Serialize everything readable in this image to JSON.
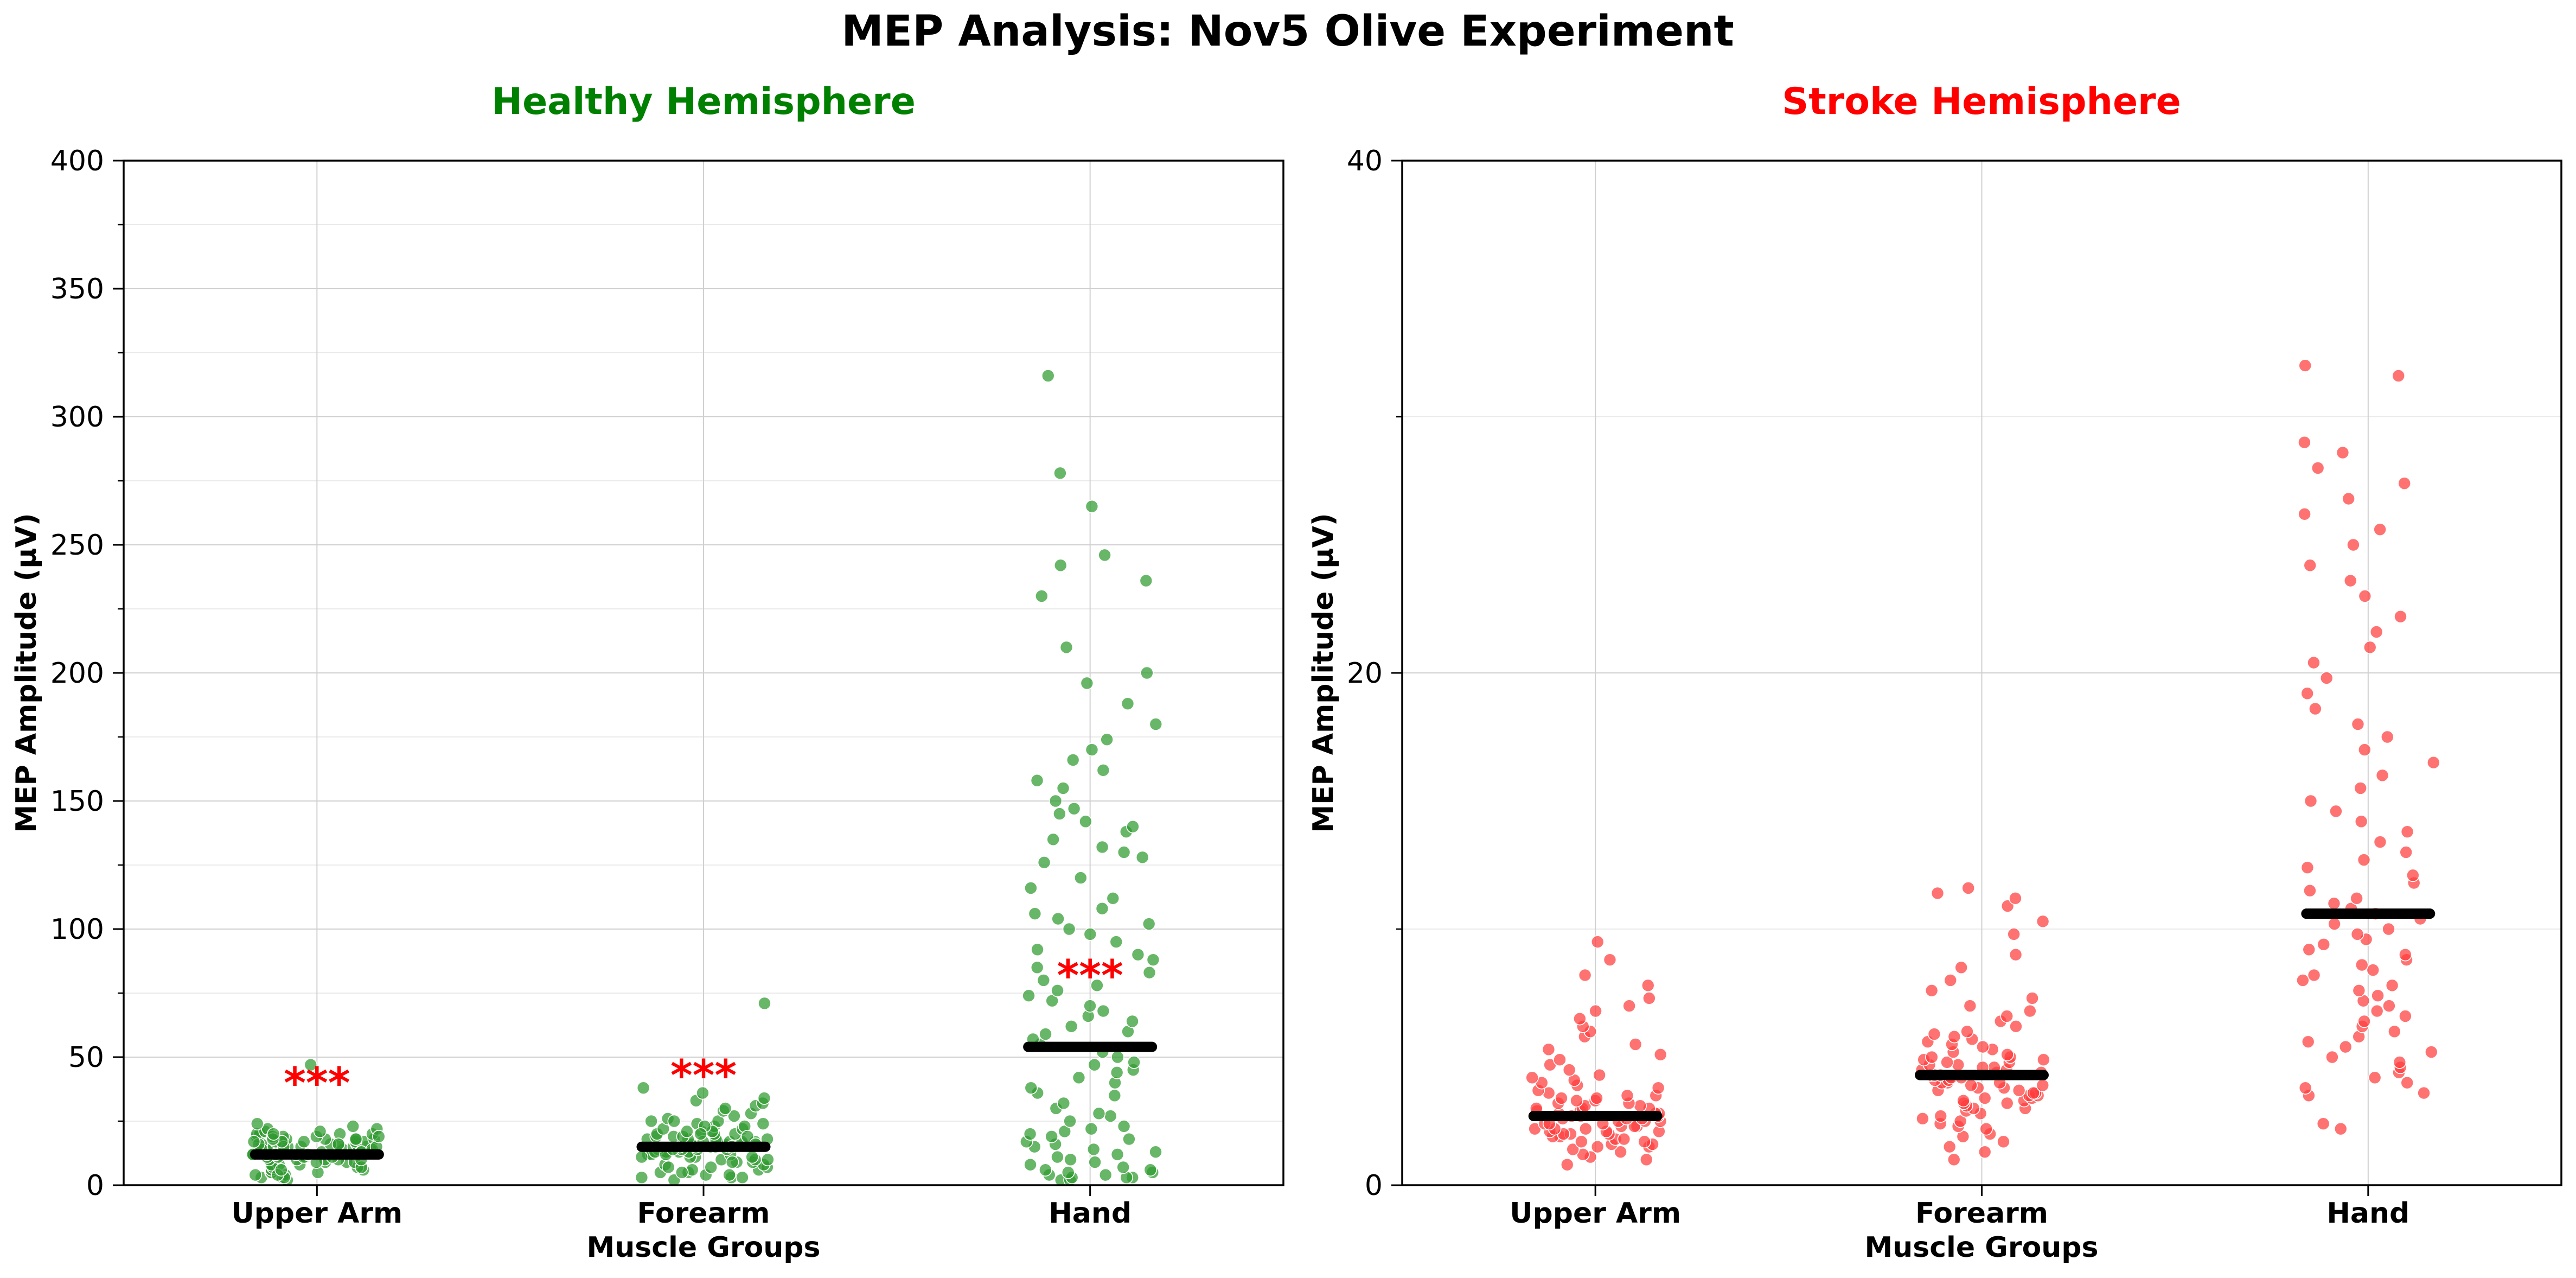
{
  "title": "MEP Analysis: Nov5 Olive Experiment",
  "chart_data": [
    {
      "type": "scatter",
      "title": "Healthy Hemisphere",
      "title_color": "#008000",
      "point_color": "#2e9a2e",
      "xlabel": "Muscle Groups",
      "ylabel": "MEP Amplitude (μV)",
      "ylim": [
        0,
        400
      ],
      "yticks": [
        0,
        50,
        100,
        150,
        200,
        250,
        300,
        350,
        400
      ],
      "ytick_labels": [
        "0",
        "50",
        "100",
        "150",
        "200",
        "250",
        "300",
        "350",
        "400"
      ],
      "categories": [
        "Upper Arm",
        "Forearm",
        "Hand"
      ],
      "medians": [
        12,
        15,
        54
      ],
      "significance": [
        {
          "category": "Upper Arm",
          "label": "***",
          "y": 40
        },
        {
          "category": "Forearm",
          "label": "***",
          "y": 43
        },
        {
          "category": "Hand",
          "label": "***",
          "y": 82
        }
      ],
      "series": [
        {
          "category": "Upper Arm",
          "values": [
            2,
            3,
            3,
            4,
            4,
            5,
            5,
            5,
            6,
            6,
            7,
            7,
            8,
            8,
            8,
            9,
            9,
            9,
            10,
            10,
            10,
            10,
            11,
            11,
            11,
            11,
            12,
            12,
            12,
            12,
            12,
            13,
            13,
            13,
            13,
            14,
            14,
            14,
            14,
            15,
            15,
            15,
            15,
            16,
            16,
            16,
            16,
            17,
            17,
            17,
            17,
            18,
            18,
            18,
            18,
            19,
            19,
            19,
            20,
            20,
            20,
            20,
            21,
            21,
            22,
            22,
            23,
            24,
            3,
            4,
            6,
            7,
            9,
            10,
            12,
            13,
            14,
            15,
            16,
            17,
            18,
            19,
            11,
            12,
            13,
            14,
            15,
            16,
            17,
            18,
            19,
            20,
            47
          ]
        },
        {
          "category": "Forearm",
          "values": [
            2,
            3,
            3,
            4,
            4,
            5,
            5,
            6,
            6,
            7,
            7,
            8,
            8,
            9,
            9,
            10,
            10,
            10,
            11,
            11,
            11,
            12,
            12,
            12,
            13,
            13,
            13,
            13,
            14,
            14,
            14,
            14,
            15,
            15,
            15,
            15,
            15,
            16,
            16,
            16,
            16,
            17,
            17,
            17,
            17,
            18,
            18,
            18,
            19,
            19,
            19,
            20,
            20,
            20,
            21,
            21,
            22,
            22,
            23,
            23,
            24,
            24,
            25,
            25,
            26,
            27,
            28,
            29,
            30,
            31,
            32,
            33,
            34,
            36,
            38,
            3,
            5,
            7,
            9,
            11,
            13,
            15,
            17,
            19,
            21,
            23,
            25,
            12,
            14,
            16,
            18,
            20,
            71
          ]
        },
        {
          "category": "Hand",
          "values": [
            2,
            2,
            3,
            3,
            3,
            4,
            4,
            5,
            5,
            6,
            6,
            7,
            8,
            9,
            10,
            11,
            12,
            13,
            14,
            15,
            16,
            17,
            18,
            19,
            20,
            21,
            22,
            23,
            25,
            27,
            28,
            30,
            32,
            35,
            36,
            38,
            40,
            42,
            44,
            45,
            47,
            48,
            50,
            52,
            55,
            57,
            59,
            60,
            62,
            64,
            66,
            68,
            70,
            72,
            74,
            76,
            78,
            80,
            83,
            85,
            88,
            90,
            92,
            95,
            98,
            100,
            102,
            104,
            106,
            108,
            112,
            116,
            120,
            126,
            128,
            130,
            132,
            135,
            138,
            140,
            142,
            145,
            147,
            150,
            155,
            158,
            162,
            166,
            170,
            174,
            180,
            188,
            196,
            200,
            210,
            230,
            236,
            242,
            246,
            265,
            278,
            316
          ]
        }
      ]
    },
    {
      "type": "scatter",
      "title": "Stroke Hemisphere",
      "title_color": "#ff0000",
      "point_color": "#ff3b3b",
      "xlabel": "Muscle Groups",
      "ylabel": "MEP Amplitude (μV)",
      "ylim": [
        0,
        40
      ],
      "yticks": [
        0,
        20,
        40
      ],
      "ytick_labels": [
        "0",
        "20",
        "40"
      ],
      "categories": [
        "Upper Arm",
        "Forearm",
        "Hand"
      ],
      "medians": [
        2.7,
        4.3,
        10.6
      ],
      "significance": [],
      "series": [
        {
          "category": "Upper Arm",
          "values": [
            0.8,
            1.0,
            1.1,
            1.2,
            1.3,
            1.4,
            1.5,
            1.5,
            1.6,
            1.6,
            1.7,
            1.7,
            1.8,
            1.8,
            1.9,
            1.9,
            2.0,
            2.0,
            2.0,
            2.1,
            2.1,
            2.1,
            2.2,
            2.2,
            2.2,
            2.3,
            2.3,
            2.3,
            2.4,
            2.4,
            2.4,
            2.5,
            2.5,
            2.5,
            2.6,
            2.6,
            2.6,
            2.7,
            2.7,
            2.7,
            2.8,
            2.8,
            2.8,
            2.9,
            2.9,
            3.0,
            3.0,
            3.0,
            3.1,
            3.1,
            3.2,
            3.2,
            3.3,
            3.3,
            3.4,
            3.4,
            3.5,
            3.5,
            3.6,
            3.7,
            3.8,
            3.9,
            4.0,
            4.1,
            4.2,
            4.3,
            4.5,
            4.7,
            4.9,
            5.1,
            5.3,
            5.5,
            5.8,
            6.0,
            6.2,
            6.5,
            6.8,
            7.0,
            7.3,
            7.8,
            8.2,
            8.8,
            9.5
          ]
        },
        {
          "category": "Forearm",
          "values": [
            1.0,
            1.3,
            1.5,
            1.7,
            1.9,
            2.0,
            2.2,
            2.3,
            2.4,
            2.5,
            2.6,
            2.7,
            2.8,
            2.9,
            3.0,
            3.0,
            3.1,
            3.2,
            3.2,
            3.3,
            3.3,
            3.4,
            3.4,
            3.5,
            3.5,
            3.6,
            3.6,
            3.7,
            3.7,
            3.8,
            3.8,
            3.9,
            3.9,
            4.0,
            4.0,
            4.0,
            4.1,
            4.1,
            4.2,
            4.2,
            4.3,
            4.3,
            4.3,
            4.4,
            4.4,
            4.5,
            4.5,
            4.6,
            4.6,
            4.7,
            4.7,
            4.8,
            4.8,
            4.9,
            4.9,
            5.0,
            5.0,
            5.1,
            5.2,
            5.3,
            5.4,
            5.5,
            5.6,
            5.7,
            5.8,
            5.9,
            6.0,
            6.2,
            6.4,
            6.6,
            6.8,
            7.0,
            7.3,
            7.6,
            8.0,
            8.5,
            9.0,
            9.8,
            10.3,
            10.9,
            11.2,
            11.4,
            11.6
          ]
        },
        {
          "category": "Hand",
          "values": [
            2.2,
            2.4,
            3.5,
            3.6,
            3.8,
            4.0,
            4.2,
            4.4,
            4.6,
            4.8,
            5.0,
            5.2,
            5.4,
            5.6,
            5.8,
            6.0,
            6.2,
            6.4,
            6.6,
            6.8,
            7.0,
            7.2,
            7.4,
            7.6,
            7.8,
            8.0,
            8.2,
            8.4,
            8.6,
            8.8,
            9.0,
            9.2,
            9.4,
            9.6,
            9.8,
            10.0,
            10.2,
            10.4,
            10.6,
            10.8,
            11.0,
            11.2,
            11.5,
            11.8,
            12.1,
            12.4,
            12.7,
            13.0,
            13.4,
            13.8,
            14.2,
            14.6,
            15.0,
            15.5,
            16.0,
            16.5,
            17.0,
            17.5,
            18.0,
            18.6,
            19.2,
            19.8,
            20.4,
            21.0,
            21.6,
            22.2,
            23.0,
            23.6,
            24.2,
            25.0,
            25.6,
            26.2,
            26.8,
            27.4,
            28.0,
            28.6,
            29.0,
            31.6,
            32.0
          ]
        }
      ]
    }
  ]
}
